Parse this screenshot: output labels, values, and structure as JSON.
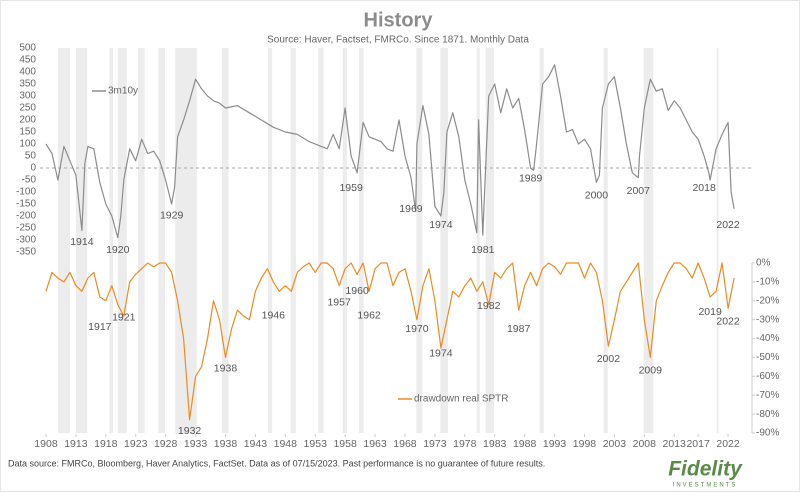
{
  "chart_data": [
    {
      "type": "line",
      "title": "History",
      "subtitle": "Source: Haver, Factset, FMRCo.  Since 1871.  Monthly Data",
      "xlim": [
        1907,
        2026
      ],
      "ylim": [
        -350,
        500
      ],
      "yticks": [
        500,
        450,
        400,
        350,
        300,
        250,
        200,
        150,
        100,
        50,
        0,
        -50,
        -100,
        -150,
        -200,
        -250,
        -300,
        -350
      ],
      "zero_line": true,
      "shaded_periods": [
        [
          1910,
          1912
        ],
        [
          1913,
          1914.9
        ],
        [
          1918.6,
          1919.2
        ],
        [
          1920,
          1921.5
        ],
        [
          1923.4,
          1924.5
        ],
        [
          1926.8,
          1927.9
        ],
        [
          1929.6,
          1933.2
        ],
        [
          1937.4,
          1938.5
        ],
        [
          1945.1,
          1945.8
        ],
        [
          1948.9,
          1949.8
        ],
        [
          1953.5,
          1954.4
        ],
        [
          1957.6,
          1958.3
        ],
        [
          1960.3,
          1961.1
        ],
        [
          1969.9,
          1970.9
        ],
        [
          1973.9,
          1975.2
        ],
        [
          1980,
          1980.5
        ],
        [
          1981.5,
          1982.9
        ],
        [
          1990.5,
          1991.2
        ],
        [
          2001.2,
          2001.9
        ],
        [
          2007.9,
          2009.5
        ],
        [
          2020.1,
          2020.4
        ]
      ],
      "x": [
        1908,
        1909,
        1910,
        1911,
        1912,
        1913,
        1914,
        1914.5,
        1915,
        1916,
        1917,
        1918,
        1919,
        1920,
        1920.5,
        1921,
        1922,
        1923,
        1924,
        1925,
        1926,
        1927,
        1928,
        1929,
        1929.5,
        1930,
        1931,
        1932,
        1933,
        1934,
        1935,
        1936,
        1937,
        1938,
        1940,
        1942,
        1944,
        1946,
        1948,
        1950,
        1952,
        1954,
        1955,
        1956,
        1957,
        1958,
        1959,
        1960,
        1961,
        1962,
        1963,
        1964,
        1965,
        1966,
        1967,
        1968,
        1969,
        1969.8,
        1970,
        1971,
        1972,
        1973,
        1974,
        1974.5,
        1975,
        1976,
        1977,
        1978,
        1979,
        1980,
        1980.3,
        1981,
        1981.3,
        1982,
        1983,
        1984,
        1985,
        1986,
        1987,
        1988,
        1989,
        1989.5,
        1990,
        1991,
        1992,
        1993,
        1994,
        1995,
        1996,
        1997,
        1998,
        1999,
        2000,
        2000.5,
        2001,
        2002,
        2003,
        2004,
        2005,
        2006,
        2007,
        2007.2,
        2008,
        2009,
        2010,
        2011,
        2012,
        2013,
        2014,
        2015,
        2016,
        2017,
        2018,
        2018.8,
        2019,
        2020,
        2021,
        2022,
        2022.5,
        2023
      ],
      "series": [
        {
          "name": "3m10y",
          "color": "#8c8c8c",
          "values": [
            100,
            60,
            -50,
            90,
            30,
            -30,
            -260,
            20,
            90,
            80,
            -60,
            -150,
            -200,
            -290,
            -200,
            -50,
            80,
            30,
            120,
            60,
            70,
            30,
            -50,
            -150,
            -80,
            130,
            200,
            280,
            370,
            330,
            300,
            280,
            270,
            250,
            260,
            230,
            200,
            170,
            150,
            140,
            110,
            90,
            80,
            140,
            80,
            250,
            50,
            -20,
            190,
            130,
            120,
            110,
            80,
            70,
            200,
            50,
            -40,
            -180,
            100,
            260,
            140,
            -160,
            -200,
            -100,
            150,
            230,
            130,
            -50,
            -150,
            -270,
            200,
            -280,
            -100,
            300,
            350,
            230,
            330,
            250,
            290,
            160,
            0,
            -10,
            100,
            350,
            380,
            430,
            300,
            150,
            160,
            100,
            120,
            80,
            -60,
            -30,
            250,
            350,
            380,
            250,
            100,
            -20,
            -40,
            50,
            250,
            370,
            320,
            330,
            240,
            280,
            250,
            200,
            150,
            120,
            50,
            -20,
            -50,
            80,
            140,
            190,
            -100,
            -170
          ]
        }
      ],
      "annotations": [
        {
          "label": "1914",
          "x": 1914,
          "y": -310
        },
        {
          "label": "1920",
          "x": 1920,
          "y": -342
        },
        {
          "label": "1929",
          "x": 1929,
          "y": -199
        },
        {
          "label": "1959",
          "x": 1959,
          "y": -84
        },
        {
          "label": "1969",
          "x": 1969,
          "y": -171
        },
        {
          "label": "1974",
          "x": 1974,
          "y": -239
        },
        {
          "label": "1981",
          "x": 1981,
          "y": -342
        },
        {
          "label": "1989",
          "x": 1989,
          "y": -44
        },
        {
          "label": "2000",
          "x": 2000,
          "y": -115
        },
        {
          "label": "2007",
          "x": 2007,
          "y": -96
        },
        {
          "label": "2018",
          "x": 2018,
          "y": -84
        },
        {
          "label": "2022",
          "x": 2022,
          "y": -239
        }
      ]
    },
    {
      "type": "line",
      "xlim": [
        1907,
        2026
      ],
      "ylim": [
        -90,
        0
      ],
      "yticks": [
        {
          "value": 0,
          "label": "0%"
        },
        {
          "value": -10,
          "label": "-10%"
        },
        {
          "value": -20,
          "label": "-20%"
        },
        {
          "value": -30,
          "label": "-30%"
        },
        {
          "value": -40,
          "label": "-40%"
        },
        {
          "value": -50,
          "label": "-50%"
        },
        {
          "value": -60,
          "label": "-60%"
        },
        {
          "value": -70,
          "label": "-70%"
        },
        {
          "value": -80,
          "label": "-80%"
        },
        {
          "value": -90,
          "label": "-90%"
        }
      ],
      "xticks": [
        1908,
        1913,
        1918,
        1923,
        1928,
        1933,
        1938,
        1943,
        1948,
        1953,
        1958,
        1963,
        1968,
        1973,
        1978,
        1983,
        1988,
        1993,
        1998,
        2003,
        2008,
        2013,
        2017,
        2022
      ],
      "x": [
        1908,
        1909,
        1910,
        1911,
        1912,
        1913,
        1914,
        1915,
        1916,
        1917,
        1918,
        1919,
        1920,
        1921,
        1922,
        1923,
        1924,
        1925,
        1926,
        1927,
        1928,
        1929,
        1930,
        1931,
        1932,
        1933,
        1934,
        1935,
        1936,
        1937,
        1938,
        1939,
        1940,
        1941,
        1942,
        1943,
        1944,
        1945,
        1946,
        1947,
        1948,
        1949,
        1950,
        1951,
        1952,
        1953,
        1954,
        1955,
        1956,
        1957,
        1958,
        1959,
        1960,
        1961,
        1962,
        1963,
        1964,
        1965,
        1966,
        1967,
        1968,
        1969,
        1970,
        1971,
        1972,
        1973,
        1974,
        1975,
        1976,
        1977,
        1978,
        1979,
        1980,
        1981,
        1982,
        1983,
        1984,
        1985,
        1986,
        1987,
        1988,
        1989,
        1990,
        1991,
        1992,
        1993,
        1994,
        1995,
        1996,
        1997,
        1998,
        1999,
        2000,
        2001,
        2002,
        2003,
        2004,
        2005,
        2006,
        2007,
        2008,
        2009,
        2010,
        2011,
        2012,
        2013,
        2014,
        2015,
        2016,
        2017,
        2018,
        2019,
        2020,
        2021,
        2022,
        2023
      ],
      "series": [
        {
          "name": "drawdown real SPTR",
          "color": "#ee8a1f",
          "values": [
            -15,
            -5,
            -8,
            -10,
            -5,
            -12,
            -15,
            -8,
            -5,
            -18,
            -20,
            -12,
            -22,
            -28,
            -10,
            -6,
            -3,
            0,
            -2,
            0,
            0,
            -5,
            -20,
            -40,
            -83,
            -60,
            -55,
            -40,
            -20,
            -30,
            -50,
            -35,
            -25,
            -28,
            -30,
            -15,
            -8,
            -3,
            -10,
            -15,
            -12,
            -15,
            -5,
            -2,
            0,
            -5,
            0,
            0,
            -3,
            -12,
            -3,
            0,
            -6,
            0,
            -15,
            -3,
            0,
            0,
            -12,
            -5,
            -3,
            -15,
            -30,
            -12,
            -3,
            -20,
            -45,
            -30,
            -15,
            -18,
            -12,
            -8,
            -15,
            -10,
            -22,
            -5,
            -8,
            -3,
            0,
            -25,
            -12,
            -5,
            -12,
            -3,
            0,
            -2,
            -6,
            0,
            0,
            0,
            -8,
            0,
            -5,
            -20,
            -44,
            -30,
            -15,
            -10,
            -5,
            0,
            -30,
            -50,
            -20,
            -12,
            -5,
            0,
            0,
            -3,
            -8,
            0,
            -8,
            -18,
            -15,
            0,
            -24,
            -8
          ]
        }
      ],
      "annotations": [
        {
          "label": "1917",
          "x": 1917,
          "y": -34
        },
        {
          "label": "1921",
          "x": 1921,
          "y": -29
        },
        {
          "label": "1932",
          "x": 1932,
          "y": -89
        },
        {
          "label": "1938",
          "x": 1938,
          "y": -56
        },
        {
          "label": "1946",
          "x": 1946,
          "y": -28
        },
        {
          "label": "1957",
          "x": 1957,
          "y": -21
        },
        {
          "label": "1960",
          "x": 1960,
          "y": -15
        },
        {
          "label": "1962",
          "x": 1962,
          "y": -28
        },
        {
          "label": "1970",
          "x": 1970,
          "y": -35
        },
        {
          "label": "1974",
          "x": 1974,
          "y": -48
        },
        {
          "label": "1982",
          "x": 1982,
          "y": -23
        },
        {
          "label": "1987",
          "x": 1987,
          "y": -35
        },
        {
          "label": "2002",
          "x": 2002,
          "y": -51
        },
        {
          "label": "2009",
          "x": 2009,
          "y": -57
        },
        {
          "label": "2019",
          "x": 2019,
          "y": -26
        },
        {
          "label": "2022",
          "x": 2022,
          "y": -31
        }
      ]
    }
  ],
  "footer": {
    "source": "Data source: FMRCo, Bloomberg, Haver Analytics, FactSet. Data as of 07/15/2023. Past performance is no guarantee of future results.",
    "logo": "Fidelity",
    "logo_sub": "INVESTMENTS"
  }
}
